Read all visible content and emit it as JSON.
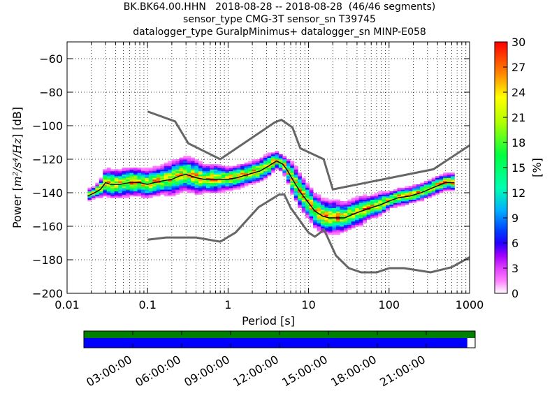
{
  "chart_data": {
    "type": "heatmap",
    "title_lines": [
      "BK.BK64.00.HHN   2018-08-28 -- 2018-08-28  (46/46 segments)",
      "sensor_type CMG-3T sensor_sn T39745",
      "datalogger_type GuralpMinimus+ datalogger_sn MINP-E058"
    ],
    "xlabel": "Period [s]",
    "ylabel_prefix": "Power [",
    "ylabel_math": "m²/s⁴/Hz",
    "ylabel_suffix": "] [dB]",
    "x_scale": "log",
    "xlim": [
      0.01,
      1000
    ],
    "ylim": [
      -200,
      -50
    ],
    "x_ticks": [
      0.01,
      0.1,
      1,
      10,
      100,
      1000
    ],
    "x_tick_labels": [
      "0.01",
      "0.1",
      "1",
      "10",
      "100",
      "1000"
    ],
    "y_ticks": [
      -200,
      -180,
      -160,
      -140,
      -120,
      -100,
      -80,
      -60
    ],
    "y_tick_labels": [
      "−200",
      "−180",
      "−160",
      "−140",
      "−120",
      "−100",
      "−80",
      "−60"
    ],
    "colorbar": {
      "label": "[%]",
      "range": [
        0,
        30
      ],
      "ticks": [
        0,
        3,
        6,
        9,
        12,
        15,
        18,
        21,
        24,
        27,
        30
      ],
      "tick_labels": [
        "0",
        "3",
        "6",
        "9",
        "12",
        "15",
        "18",
        "21",
        "24",
        "27",
        "30"
      ]
    },
    "grid": "dotted",
    "nhnm": {
      "name": "",
      "x": [
        0.1,
        0.22,
        0.32,
        0.8,
        3.8,
        4.6,
        6.3,
        7.9,
        15.4,
        20,
        354.8,
        10000
      ],
      "y": [
        -91.5,
        -97.4,
        -110.5,
        -120,
        -98,
        -96.5,
        -101,
        -113.5,
        -120,
        -138,
        -126,
        -80
      ]
    },
    "nlnm": {
      "name": "",
      "x": [
        0.1,
        0.17,
        0.4,
        0.8,
        1.24,
        2.4,
        4.3,
        5,
        6,
        10,
        12,
        15.6,
        21.9,
        31.6,
        45,
        70,
        101,
        154,
        328,
        600,
        1000
      ],
      "y": [
        -168,
        -166.7,
        -166.7,
        -169.2,
        -163.7,
        -148.6,
        -141.1,
        -141.1,
        -149,
        -163.8,
        -166.2,
        -162.1,
        -177.5,
        -185,
        -187.5,
        -187.5,
        -185,
        -185,
        -187.5,
        -184.4,
        -178.5
      ]
    },
    "mode_curve": {
      "x": [
        0.018,
        0.022,
        0.026,
        0.03,
        0.035,
        0.045,
        0.06,
        0.08,
        0.1,
        0.12,
        0.15,
        0.2,
        0.25,
        0.3,
        0.4,
        0.5,
        0.7,
        1,
        1.3,
        1.8,
        2.5,
        3.2,
        4,
        4.8,
        5.5,
        6.5,
        8,
        10,
        12,
        15,
        18,
        22,
        28,
        35,
        45,
        60,
        80,
        100,
        130,
        180,
        250,
        350,
        500,
        650
      ],
      "y": [
        -142,
        -140,
        -138,
        -134,
        -135,
        -135,
        -134,
        -134,
        -135,
        -134,
        -133,
        -132,
        -130,
        -129,
        -131,
        -132,
        -132,
        -132,
        -131,
        -129,
        -127,
        -124,
        -121,
        -123,
        -127,
        -133,
        -140,
        -146,
        -151,
        -154,
        -155,
        -155,
        -155,
        -153,
        -151,
        -149,
        -147,
        -145,
        -143,
        -142,
        -140,
        -137,
        -134,
        -134
      ]
    },
    "heatmap_envelope": {
      "x": [
        0.018,
        0.022,
        0.026,
        0.03,
        0.035,
        0.045,
        0.06,
        0.08,
        0.1,
        0.12,
        0.15,
        0.2,
        0.25,
        0.3,
        0.4,
        0.5,
        0.7,
        1,
        1.3,
        1.8,
        2.5,
        3.2,
        4,
        4.8,
        5.5,
        6.5,
        8,
        10,
        12,
        15,
        18,
        22,
        28,
        35,
        45,
        60,
        80,
        100,
        130,
        180,
        250,
        350,
        500,
        650
      ],
      "spread": [
        2,
        2,
        3,
        5,
        5,
        5,
        5,
        5,
        5,
        5,
        5,
        6,
        6,
        6,
        6,
        5,
        5,
        4,
        4,
        4,
        4,
        4,
        3,
        3,
        4,
        6,
        6,
        6,
        6,
        6,
        6,
        6,
        5,
        5,
        5,
        4,
        4,
        3,
        3,
        3,
        3,
        3,
        3,
        3
      ]
    },
    "time_axis": {
      "tick_labels": [
        "03:00:00",
        "06:00:00",
        "09:00:00",
        "12:00:00",
        "15:00:00",
        "18:00:00",
        "21:00:00"
      ],
      "data_coverage": 1.0,
      "gap_coverage": 0.98
    },
    "colors": {
      "noise_model": "#666666",
      "mode": "#000000",
      "coverage_data": "#008000",
      "coverage_gaps": "#0000ff"
    }
  }
}
